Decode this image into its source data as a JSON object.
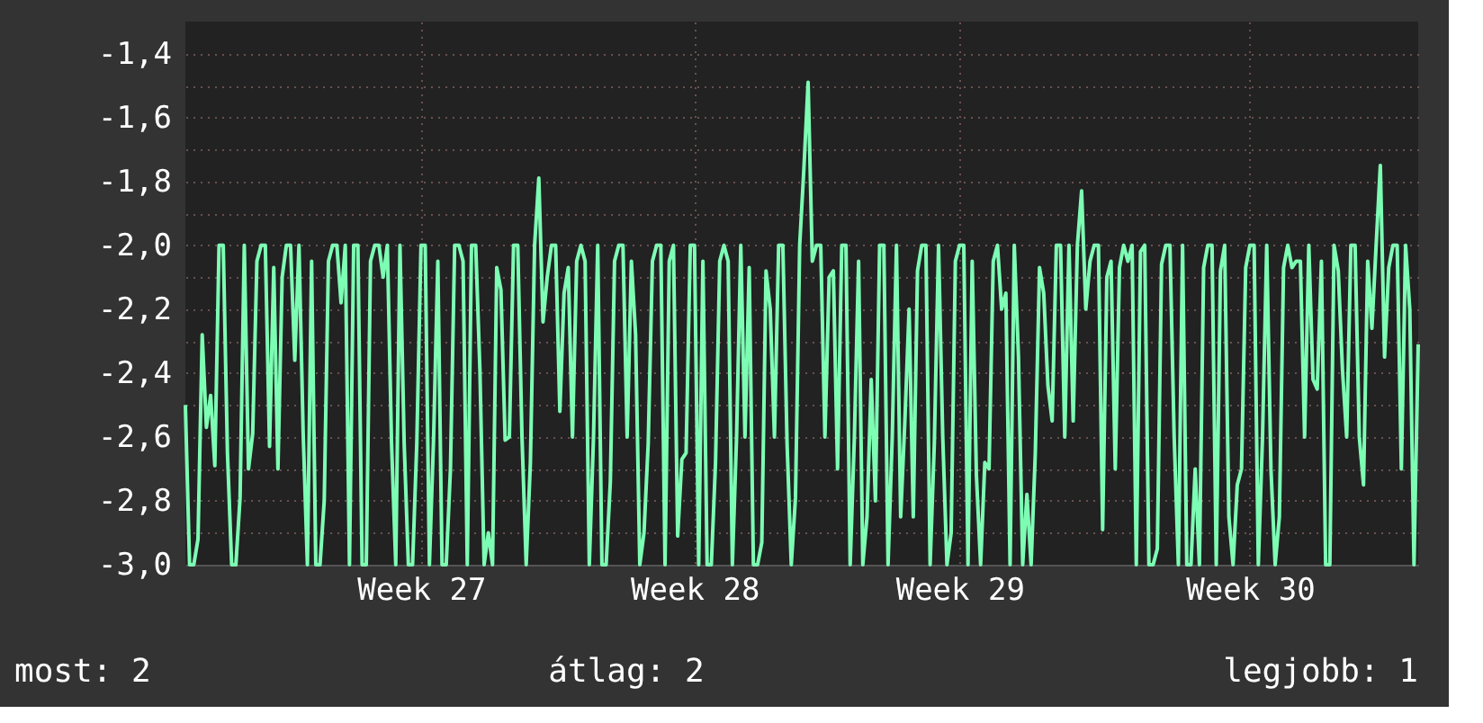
{
  "chart_data": {
    "type": "line",
    "annotations": [
      "most: 2",
      "átlag: 2",
      "legjobb: 1"
    ],
    "categories": [
      null,
      null,
      null,
      null,
      null,
      null,
      null,
      null,
      null,
      null,
      null,
      null,
      null,
      null,
      null,
      null,
      null,
      null,
      null,
      null,
      null,
      null,
      null,
      null,
      null,
      null,
      null,
      null,
      null,
      null,
      null,
      null,
      null,
      null,
      null,
      null,
      null,
      null,
      null,
      null,
      null,
      null,
      null,
      null,
      null,
      null,
      null,
      null,
      null,
      null,
      null,
      null,
      null,
      null,
      null,
      null,
      "Week 27",
      null,
      null,
      null,
      null,
      null,
      null,
      null,
      null,
      null,
      null,
      null,
      null,
      null,
      null,
      null,
      null,
      null,
      null,
      null,
      null,
      null,
      null,
      null,
      null,
      null,
      null,
      null,
      null,
      null,
      null,
      null,
      null,
      null,
      null,
      null,
      null,
      null,
      null,
      null,
      null,
      null,
      null,
      null,
      null,
      null,
      null,
      null,
      null,
      null,
      null,
      null,
      null,
      null,
      null,
      null,
      null,
      null,
      null,
      null,
      null,
      null,
      null,
      null,
      null,
      "Week 28",
      null,
      null,
      null,
      null,
      null,
      null,
      null,
      null,
      null,
      null,
      null,
      null,
      null,
      null,
      null,
      null,
      null,
      null,
      null,
      null,
      null,
      null,
      null,
      null,
      null,
      null,
      null,
      null,
      null,
      null,
      null,
      null,
      null,
      null,
      null,
      null,
      null,
      null,
      null,
      null,
      null,
      null,
      null,
      null,
      null,
      null,
      null,
      null,
      null,
      null,
      null,
      null,
      null,
      null,
      null,
      null,
      null,
      null,
      null,
      null,
      null,
      null,
      "Week 29",
      null,
      null,
      null,
      null,
      null,
      null,
      null,
      null,
      null,
      null,
      null,
      null,
      null,
      null,
      null,
      null,
      null,
      null,
      null,
      null,
      null,
      null,
      null,
      null,
      null,
      null,
      null,
      null,
      null,
      null,
      null,
      null,
      null,
      null,
      null,
      null,
      null,
      null,
      null,
      null,
      null,
      null,
      null,
      null,
      null,
      null,
      null,
      null,
      null,
      null,
      null,
      null,
      null,
      null,
      null,
      null,
      null,
      null,
      null,
      null,
      null,
      null,
      null,
      null,
      null,
      null,
      null,
      null,
      "Week 30",
      null,
      null,
      null,
      null,
      null,
      null,
      null,
      null,
      null,
      null,
      null,
      null,
      null,
      null,
      null,
      null,
      null,
      null,
      null,
      null,
      null,
      null,
      null,
      null,
      null,
      null,
      null,
      null,
      null,
      null,
      null,
      null,
      null,
      null,
      null,
      null,
      null,
      null,
      null,
      null
    ],
    "series": [
      {
        "color": "#7dfcb4",
        "values": [
          -2.5,
          -3.0,
          -3.0,
          -2.92,
          -2.28,
          -2.57,
          -2.47,
          -2.69,
          -2.0,
          -2.0,
          -2.65,
          -3.0,
          -3.0,
          -2.79,
          -2.0,
          -2.7,
          -2.59,
          -2.05,
          -2.0,
          -2.0,
          -2.63,
          -2.07,
          -2.7,
          -2.1,
          -2.0,
          -2.0,
          -2.36,
          -2.0,
          -2.59,
          -3.0,
          -2.05,
          -3.0,
          -3.0,
          -2.8,
          -2.05,
          -2.0,
          -2.0,
          -2.18,
          -2.0,
          -3.0,
          -2.0,
          -2.0,
          -3.0,
          -3.0,
          -2.05,
          -2.0,
          -2.0,
          -2.1,
          -2.0,
          -2.62,
          -3.0,
          -2.0,
          -2.62,
          -3.0,
          -3.0,
          -2.62,
          -2.0,
          -2.0,
          -3.0,
          -2.6,
          -2.05,
          -3.0,
          -3.0,
          -2.7,
          -2.0,
          -2.0,
          -2.05,
          -3.0,
          -2.0,
          -2.0,
          -2.39,
          -3.0,
          -2.9,
          -3.0,
          -2.07,
          -2.14,
          -2.61,
          -2.6,
          -2.0,
          -2.0,
          -2.6,
          -3.0,
          -2.68,
          -2.0,
          -1.79,
          -2.24,
          -2.1,
          -2.0,
          -2.0,
          -2.52,
          -2.15,
          -2.07,
          -2.6,
          -2.05,
          -2.0,
          -2.05,
          -3.0,
          -2.6,
          -2.0,
          -3.0,
          -3.0,
          -2.74,
          -2.05,
          -2.0,
          -2.0,
          -2.6,
          -2.05,
          -2.28,
          -3.0,
          -2.9,
          -2.62,
          -2.05,
          -2.0,
          -2.0,
          -3.0,
          -2.05,
          -2.0,
          -2.91,
          -2.67,
          -2.65,
          -2.0,
          -2.0,
          -3.0,
          -2.05,
          -3.0,
          -3.0,
          -2.68,
          -2.05,
          -2.0,
          -2.05,
          -3.0,
          -2.6,
          -2.0,
          -2.6,
          -2.07,
          -3.0,
          -3.0,
          -2.93,
          -2.08,
          -2.2,
          -2.6,
          -2.0,
          -2.0,
          -2.62,
          -3.0,
          -2.79,
          -2.0,
          -1.76,
          -1.49,
          -2.05,
          -2.0,
          -2.0,
          -2.6,
          -2.1,
          -2.08,
          -2.7,
          -2.0,
          -2.0,
          -3.0,
          -2.6,
          -2.05,
          -3.0,
          -2.85,
          -2.42,
          -2.8,
          -2.0,
          -2.0,
          -3.0,
          -2.6,
          -2.0,
          -2.85,
          -2.55,
          -2.2,
          -2.85,
          -2.08,
          -2.0,
          -2.0,
          -3.0,
          -2.62,
          -2.0,
          -2.6,
          -3.0,
          -2.9,
          -2.05,
          -2.0,
          -2.0,
          -3.0,
          -2.05,
          -2.72,
          -3.0,
          -2.68,
          -2.7,
          -2.05,
          -2.0,
          -2.2,
          -2.15,
          -3.0,
          -2.0,
          -2.35,
          -3.0,
          -2.78,
          -3.0,
          -2.65,
          -2.07,
          -2.15,
          -2.44,
          -2.55,
          -2.0,
          -2.0,
          -2.6,
          -2.0,
          -2.55,
          -2.0,
          -1.83,
          -2.2,
          -2.05,
          -2.0,
          -2.0,
          -2.89,
          -2.1,
          -2.05,
          -2.7,
          -2.07,
          -2.0,
          -2.05,
          -2.0,
          -3.0,
          -2.02,
          -2.0,
          -3.0,
          -3.0,
          -2.95,
          -2.06,
          -2.0,
          -2.0,
          -2.6,
          -3.0,
          -2.0,
          -3.0,
          -3.0,
          -2.7,
          -3.0,
          -2.07,
          -2.0,
          -2.0,
          -3.0,
          -2.08,
          -2.0,
          -2.85,
          -3.0,
          -2.75,
          -2.7,
          -2.07,
          -2.0,
          -2.0,
          -3.0,
          -2.6,
          -2.0,
          -2.7,
          -3.0,
          -2.85,
          -2.07,
          -2.0,
          -2.07,
          -2.05,
          -2.05,
          -2.6,
          -2.0,
          -2.42,
          -2.45,
          -2.05,
          -3.0,
          -3.0,
          -2.0,
          -2.08,
          -2.39,
          -2.6,
          -2.0,
          -2.0,
          -2.6,
          -2.75,
          -2.05,
          -2.26,
          -2.0,
          -1.75,
          -2.35,
          -2.07,
          -2.0,
          -2.0,
          -2.7,
          -2.0,
          -2.2,
          -3.0,
          -2.31
        ]
      }
    ],
    "ylim": [
      -3.0,
      -1.3
    ],
    "yticks": [
      {
        "value": -3.0,
        "label": "-3,0"
      },
      {
        "value": -2.9,
        "label": null
      },
      {
        "value": -2.8,
        "label": "-2,8"
      },
      {
        "value": -2.7,
        "label": null
      },
      {
        "value": -2.6,
        "label": "-2,6"
      },
      {
        "value": -2.5,
        "label": null
      },
      {
        "value": -2.4,
        "label": "-2,4"
      },
      {
        "value": -2.3,
        "label": null
      },
      {
        "value": -2.2,
        "label": "-2,2"
      },
      {
        "value": -2.1,
        "label": null
      },
      {
        "value": -2.0,
        "label": "-2,0"
      },
      {
        "value": -1.9,
        "label": null
      },
      {
        "value": -1.8,
        "label": "-1,8"
      },
      {
        "value": -1.7,
        "label": null
      },
      {
        "value": -1.6,
        "label": "-1,6"
      },
      {
        "value": -1.5,
        "label": null
      },
      {
        "value": -1.4,
        "label": "-1,4"
      }
    ],
    "grid": true,
    "marker": "none",
    "line_style": "solid"
  }
}
